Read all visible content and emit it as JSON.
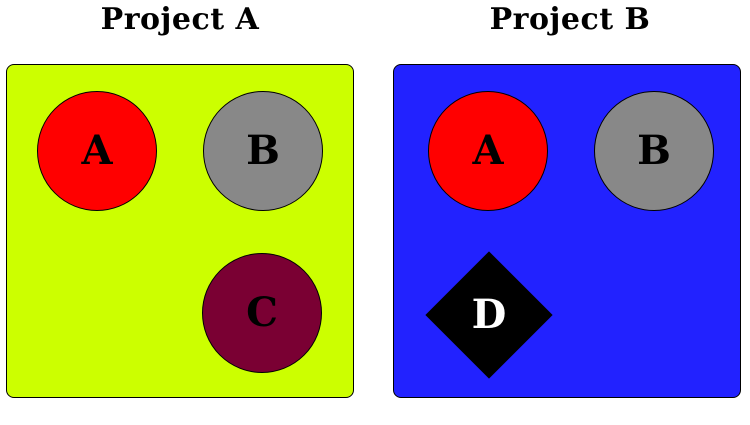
{
  "projects": [
    {
      "title": "Project A",
      "background": "#ccff00",
      "nodes": [
        {
          "label": "A",
          "shape": "circle",
          "fill": "#ff0000",
          "text_color": "#000000"
        },
        {
          "label": "B",
          "shape": "circle",
          "fill": "#888888",
          "text_color": "#000000"
        },
        {
          "label": "C",
          "shape": "circle",
          "fill": "#7a0033",
          "text_color": "#000000"
        }
      ]
    },
    {
      "title": "Project B",
      "background": "#2222ff",
      "nodes": [
        {
          "label": "A",
          "shape": "circle",
          "fill": "#ff0000",
          "text_color": "#000000"
        },
        {
          "label": "B",
          "shape": "circle",
          "fill": "#888888",
          "text_color": "#000000"
        },
        {
          "label": "D",
          "shape": "diamond",
          "fill": "#000000",
          "text_color": "#ffffff"
        }
      ]
    }
  ]
}
